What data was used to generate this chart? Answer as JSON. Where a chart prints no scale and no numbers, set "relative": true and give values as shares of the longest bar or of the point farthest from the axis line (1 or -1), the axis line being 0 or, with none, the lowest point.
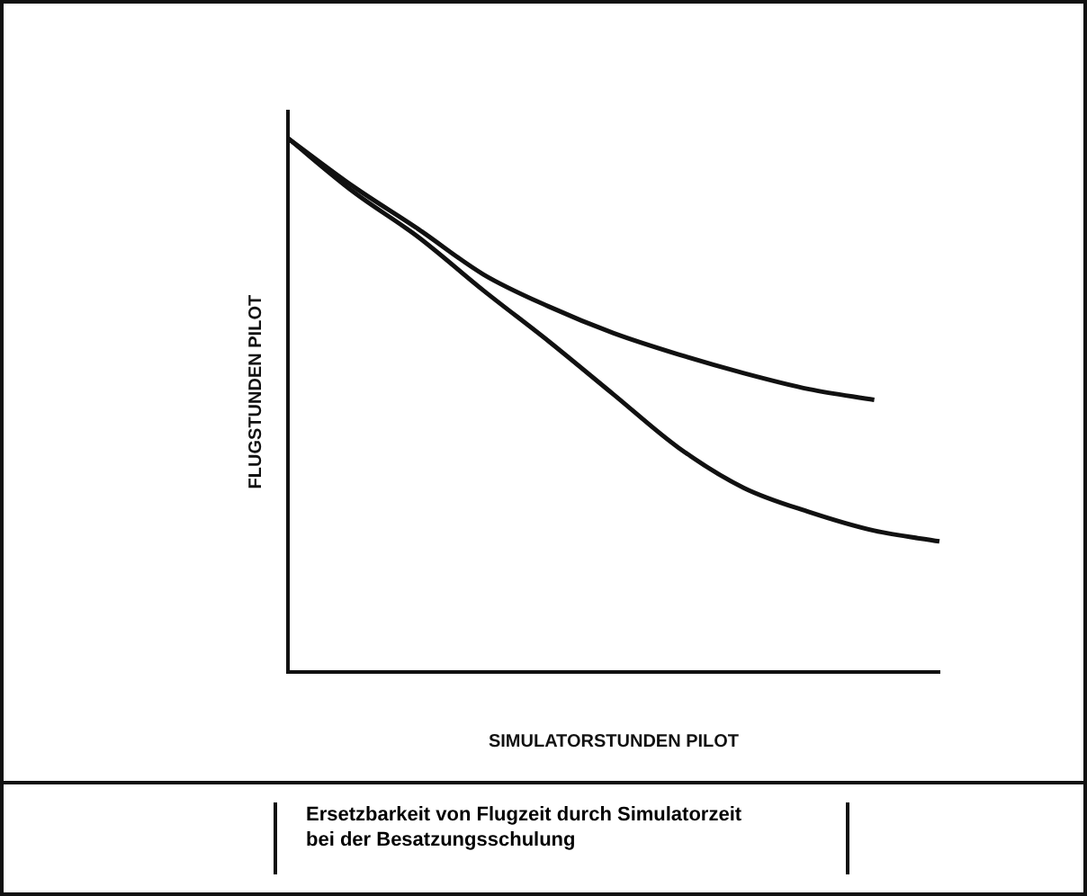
{
  "chart_data": {
    "type": "line",
    "title": "Ersetzbarkeit von Flugzeit durch Simulatorzeit\nbei der Besatzungsschulung",
    "xlabel": "SIMULATORSTUNDEN PILOT",
    "ylabel": "FLUGSTUNDEN PILOT",
    "relative": true,
    "grid": false,
    "legend": false,
    "marker": "none",
    "line_style": "solid",
    "categories": [
      null,
      null,
      null,
      null,
      null,
      null,
      null,
      null,
      null,
      null,
      null
    ],
    "series": [
      {
        "color": "#111111",
        "values": [
          1.0,
          0.91,
          0.83,
          0.745,
          0.685,
          0.635,
          0.595,
          0.56,
          0.53,
          0.51,
          null
        ]
      },
      {
        "color": "#111111",
        "values": [
          1.0,
          0.9,
          0.815,
          0.715,
          0.62,
          0.52,
          0.42,
          0.345,
          0.3,
          0.265,
          0.245
        ]
      }
    ]
  }
}
